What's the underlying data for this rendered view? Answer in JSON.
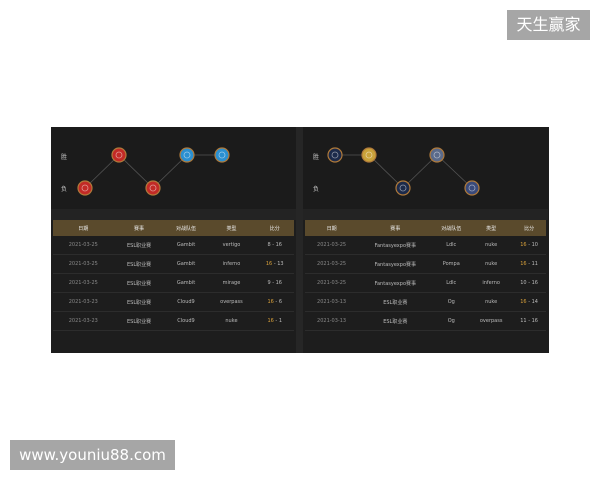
{
  "watermark_top": "天生赢家",
  "watermark_bottom": "www.youniu88.com",
  "row_labels": {
    "win": "胜",
    "lose": "负"
  },
  "headers": [
    "日期",
    "赛事",
    "对战队伍",
    "类型",
    "比分"
  ],
  "left": {
    "results": [
      "lose",
      "win",
      "lose",
      "win",
      "win"
    ],
    "icon_colors": [
      "#c22a26",
      "#c22a26",
      "#c22a26",
      "#2a8fd0",
      "#2a8fd0"
    ],
    "rows": [
      {
        "date": "2021-03-25",
        "event": "ESL职业赛",
        "opponent": "Gambit",
        "map": "vertigo",
        "s1": "8",
        "s2": "16",
        "win": false
      },
      {
        "date": "2021-03-25",
        "event": "ESL职业赛",
        "opponent": "Gambit",
        "map": "inferno",
        "s1": "16",
        "s2": "13",
        "win": true
      },
      {
        "date": "2021-03-25",
        "event": "ESL职业赛",
        "opponent": "Gambit",
        "map": "mirage",
        "s1": "9",
        "s2": "16",
        "win": false
      },
      {
        "date": "2021-03-23",
        "event": "ESL职业赛",
        "opponent": "Cloud9",
        "map": "overpass",
        "s1": "16",
        "s2": "6",
        "win": true
      },
      {
        "date": "2021-03-23",
        "event": "ESL职业赛",
        "opponent": "Cloud9",
        "map": "nuke",
        "s1": "16",
        "s2": "1",
        "win": true
      }
    ]
  },
  "right": {
    "results": [
      "win",
      "win",
      "lose",
      "win",
      "lose"
    ],
    "icon_colors": [
      "#1c2a4a",
      "#c9a23a",
      "#1c2a4a",
      "#5a6a8a",
      "#3a4a7a"
    ],
    "rows": [
      {
        "date": "2021-03-25",
        "event": "Fantasyexpo赛事",
        "opponent": "Ldlc",
        "map": "nuke",
        "s1": "16",
        "s2": "10",
        "win": true
      },
      {
        "date": "2021-03-25",
        "event": "Fantasyexpo赛事",
        "opponent": "Pompa",
        "map": "nuke",
        "s1": "16",
        "s2": "11",
        "win": true
      },
      {
        "date": "2021-03-25",
        "event": "Fantasyexpo赛事",
        "opponent": "Ldlc",
        "map": "inferno",
        "s1": "10",
        "s2": "16",
        "win": false
      },
      {
        "date": "2021-03-13",
        "event": "ESL职业赛",
        "opponent": "Og",
        "map": "nuke",
        "s1": "16",
        "s2": "14",
        "win": true
      },
      {
        "date": "2021-03-13",
        "event": "ESL职业赛",
        "opponent": "Og",
        "map": "overpass",
        "s1": "11",
        "s2": "16",
        "win": false
      }
    ]
  }
}
